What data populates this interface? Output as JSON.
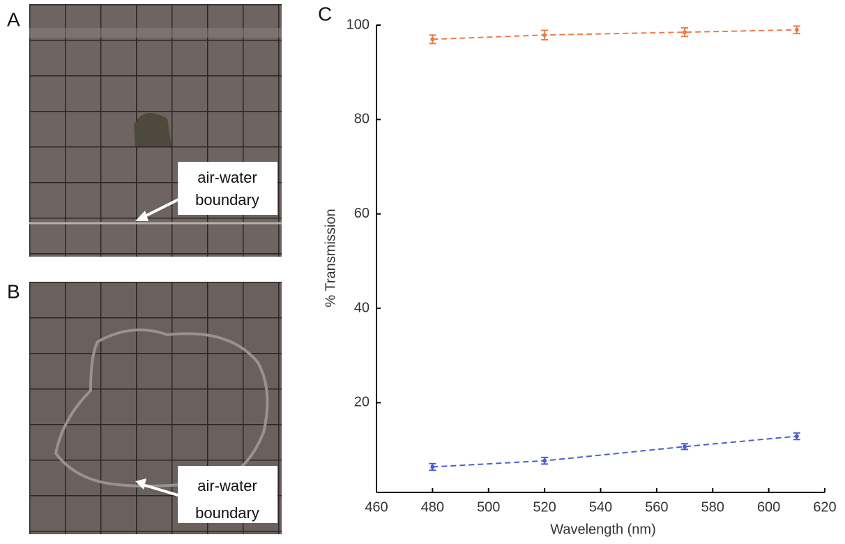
{
  "panel_labels": [
    "A",
    "B",
    "C"
  ],
  "photos": [
    {
      "annotation": [
        "air-water",
        "boundary"
      ]
    },
    {
      "annotation": [
        "air-water",
        "boundary"
      ]
    }
  ],
  "chart_data": {
    "type": "line",
    "x_label": "Wavelength (nm)",
    "y_label": "% Transmission",
    "x": [
      480,
      520,
      570,
      610
    ],
    "series": [
      {
        "color": "#f07a4a",
        "values": [
          97.0,
          97.9,
          98.5,
          99.0
        ],
        "errors": [
          0.9,
          1.0,
          0.9,
          0.8
        ]
      },
      {
        "color": "#4a5fcf",
        "values": [
          6.4,
          7.7,
          10.7,
          12.9
        ],
        "errors": [
          0.7,
          0.7,
          0.6,
          0.7
        ]
      }
    ],
    "xlim": [
      460,
      620
    ],
    "xticks": [
      460,
      480,
      500,
      520,
      540,
      560,
      580,
      600,
      620
    ],
    "ylim": [
      1,
      100
    ],
    "yticks": [
      20,
      40,
      60,
      80,
      100
    ]
  }
}
